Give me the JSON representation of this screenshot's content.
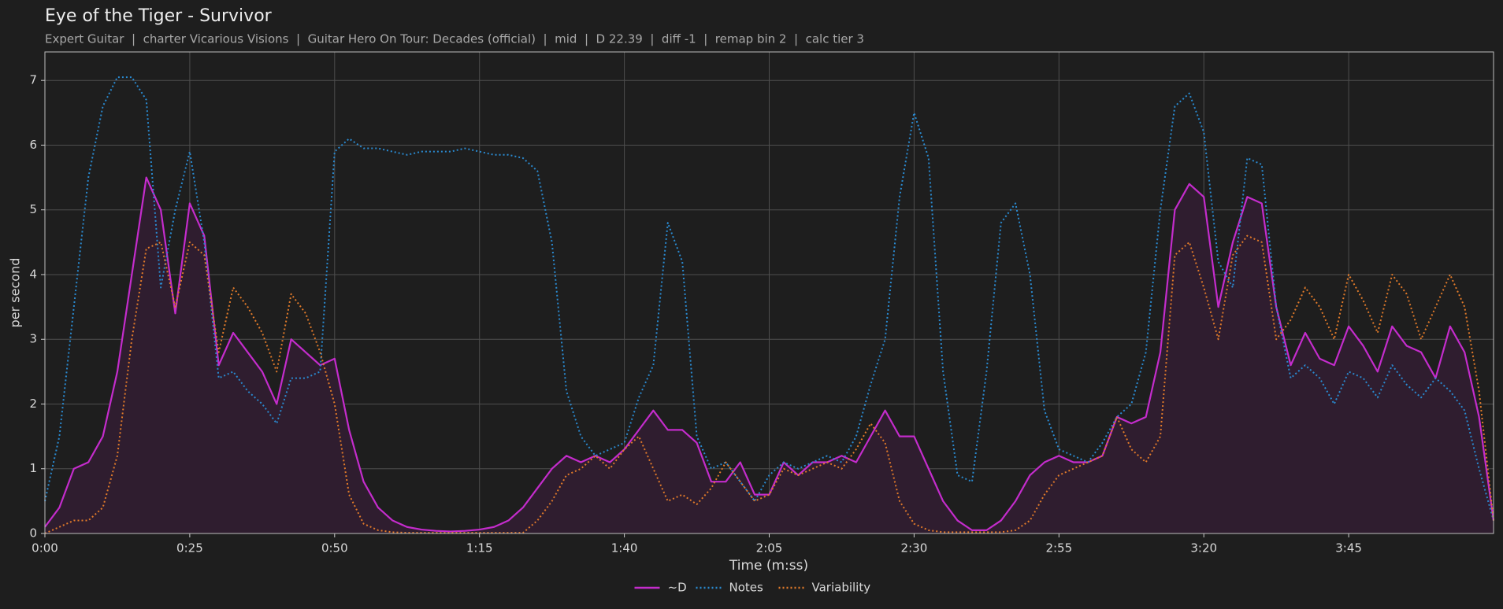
{
  "chart_data": {
    "type": "line",
    "title": "Eye of the Tiger - Survivor",
    "subtitle": "Expert Guitar  |  charter Vicarious Visions  |  Guitar Hero On Tour: Decades (official)  |  mid  |  D 22.39  |  diff -1  |  remap bin 2  |  calc tier 3",
    "xlabel": "Time (m:ss)",
    "ylabel": "per second",
    "x": [
      0,
      2.5,
      5,
      7.5,
      10,
      12.5,
      15,
      17.5,
      20,
      22.5,
      25,
      27.5,
      30,
      32.5,
      35,
      37.5,
      40,
      42.5,
      45,
      47.5,
      50,
      52.5,
      55,
      57.5,
      60,
      62.5,
      65,
      67.5,
      70,
      72.5,
      75,
      77.5,
      80,
      82.5,
      85,
      87.5,
      90,
      92.5,
      95,
      97.5,
      100,
      102.5,
      105,
      107.5,
      110,
      112.5,
      115,
      117.5,
      120,
      122.5,
      125,
      127.5,
      130,
      132.5,
      135,
      137.5,
      140,
      142.5,
      145,
      147.5,
      150,
      152.5,
      155,
      157.5,
      160,
      162.5,
      165,
      167.5,
      170,
      172.5,
      175,
      177.5,
      180,
      182.5,
      185,
      187.5,
      190,
      192.5,
      195,
      197.5,
      200,
      202.5,
      205,
      207.5,
      210,
      212.5,
      215,
      217.5,
      220,
      222.5,
      225,
      227.5,
      230,
      232.5,
      235,
      237.5,
      240,
      242.5,
      245,
      247.5,
      250
    ],
    "series": [
      {
        "name": "~D",
        "color": "#c42ccc",
        "style": "solid",
        "fill": "#2f1d2f",
        "values": [
          0.1,
          0.4,
          1.0,
          1.1,
          1.5,
          2.5,
          4.0,
          5.5,
          5.0,
          3.4,
          5.1,
          4.6,
          2.6,
          3.1,
          2.8,
          2.5,
          2.0,
          3.0,
          2.8,
          2.6,
          2.7,
          1.6,
          0.8,
          0.4,
          0.2,
          0.1,
          0.06,
          0.04,
          0.03,
          0.04,
          0.06,
          0.1,
          0.2,
          0.4,
          0.7,
          1.0,
          1.2,
          1.1,
          1.2,
          1.1,
          1.3,
          1.6,
          1.9,
          1.6,
          1.6,
          1.4,
          0.8,
          0.8,
          1.1,
          0.6,
          0.6,
          1.1,
          0.9,
          1.1,
          1.1,
          1.2,
          1.1,
          1.5,
          1.9,
          1.5,
          1.5,
          1.0,
          0.5,
          0.2,
          0.05,
          0.05,
          0.2,
          0.5,
          0.9,
          1.1,
          1.2,
          1.1,
          1.1,
          1.2,
          1.8,
          1.7,
          1.8,
          2.8,
          5.0,
          5.4,
          5.2,
          3.5,
          4.5,
          5.2,
          5.1,
          3.5,
          2.6,
          3.1,
          2.7,
          2.6,
          3.2,
          2.9,
          2.5,
          3.2,
          2.9,
          2.8,
          2.4,
          3.2,
          2.8,
          1.8,
          0.2
        ]
      },
      {
        "name": "Notes",
        "color": "#2a8ad0",
        "style": "dotted",
        "values": [
          0.5,
          1.5,
          3.5,
          5.5,
          6.6,
          7.05,
          7.05,
          6.7,
          3.8,
          5.0,
          5.9,
          4.5,
          2.4,
          2.5,
          2.2,
          2.0,
          1.7,
          2.4,
          2.4,
          2.5,
          5.9,
          6.1,
          5.95,
          5.95,
          5.9,
          5.85,
          5.9,
          5.9,
          5.9,
          5.95,
          5.9,
          5.85,
          5.85,
          5.8,
          5.6,
          4.5,
          2.2,
          1.5,
          1.2,
          1.3,
          1.4,
          2.1,
          2.6,
          4.8,
          4.2,
          1.5,
          1.0,
          1.1,
          0.8,
          0.5,
          0.9,
          1.1,
          1.0,
          1.1,
          1.2,
          1.1,
          1.5,
          2.3,
          3.0,
          5.2,
          6.5,
          5.8,
          2.5,
          0.9,
          0.8,
          2.5,
          4.8,
          5.1,
          4.0,
          1.9,
          1.3,
          1.2,
          1.1,
          1.4,
          1.8,
          2.0,
          2.8,
          5.0,
          6.6,
          6.8,
          6.2,
          4.2,
          3.8,
          5.8,
          5.7,
          3.5,
          2.4,
          2.6,
          2.4,
          2.0,
          2.5,
          2.4,
          2.1,
          2.6,
          2.3,
          2.1,
          2.4,
          2.2,
          1.9,
          1.0,
          0.2
        ]
      },
      {
        "name": "Variability",
        "color": "#e07a2a",
        "style": "dotted",
        "values": [
          0,
          0.1,
          0.2,
          0.2,
          0.4,
          1.2,
          3.0,
          4.4,
          4.5,
          3.5,
          4.5,
          4.3,
          2.8,
          3.8,
          3.5,
          3.1,
          2.5,
          3.7,
          3.4,
          2.8,
          2.0,
          0.6,
          0.15,
          0.05,
          0.02,
          0.01,
          0.01,
          0.01,
          0.01,
          0.01,
          0.01,
          0.01,
          0.01,
          0.01,
          0.2,
          0.5,
          0.9,
          1.0,
          1.2,
          1.0,
          1.3,
          1.5,
          1.0,
          0.5,
          0.6,
          0.45,
          0.7,
          1.1,
          0.8,
          0.5,
          0.6,
          1.0,
          0.9,
          1.0,
          1.1,
          1.0,
          1.3,
          1.7,
          1.4,
          0.5,
          0.15,
          0.05,
          0.02,
          0.02,
          0.02,
          0.02,
          0.02,
          0.05,
          0.2,
          0.6,
          0.9,
          1.0,
          1.1,
          1.2,
          1.8,
          1.3,
          1.1,
          1.5,
          4.3,
          4.5,
          3.8,
          3.0,
          4.3,
          4.6,
          4.5,
          3.0,
          3.3,
          3.8,
          3.5,
          3.0,
          4.0,
          3.6,
          3.1,
          4.0,
          3.7,
          3.0,
          3.5,
          4.0,
          3.5,
          2.2,
          0.2
        ]
      }
    ],
    "xlim": [
      0,
      250
    ],
    "ylim": [
      0,
      7.44
    ],
    "xticks": [
      {
        "value": 0,
        "label": "0:00"
      },
      {
        "value": 25,
        "label": "0:25"
      },
      {
        "value": 50,
        "label": "0:50"
      },
      {
        "value": 75,
        "label": "1:15"
      },
      {
        "value": 100,
        "label": "1:40"
      },
      {
        "value": 125,
        "label": "2:05"
      },
      {
        "value": 150,
        "label": "2:30"
      },
      {
        "value": 175,
        "label": "2:55"
      },
      {
        "value": 200,
        "label": "3:20"
      },
      {
        "value": 225,
        "label": "3:45"
      }
    ],
    "yticks": [
      0,
      1,
      2,
      3,
      4,
      5,
      6,
      7
    ],
    "grid": true,
    "legend": "bottom"
  }
}
